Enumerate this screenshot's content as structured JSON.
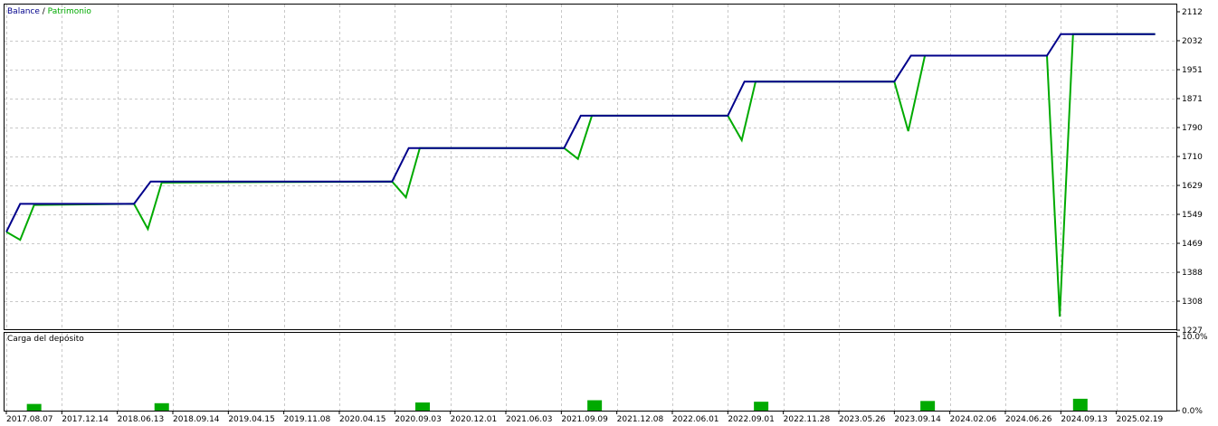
{
  "chart_data": [
    {
      "type": "line",
      "legend": {
        "balance_label": "Balance",
        "separator": " / ",
        "equity_label": "Patrimonio",
        "position": "top-left"
      },
      "colors": {
        "balance": "#00008b",
        "equity": "#00aa00",
        "grid": "#c8c8c8"
      },
      "grid": true,
      "ylim": [
        1227,
        2112
      ],
      "y_ticks": [
        "2112",
        "2032",
        "1951",
        "1871",
        "1790",
        "1710",
        "1629",
        "1549",
        "1469",
        "1388",
        "1308",
        "1227"
      ],
      "x_ticks": [
        "2017.08.07",
        "2017.12.14",
        "2018.06.13",
        "2018.09.14",
        "2019.04.15",
        "2019.11.08",
        "2020.04.15",
        "2020.09.03",
        "2020.12.01",
        "2021.06.03",
        "2021.09.09",
        "2021.12.08",
        "2022.06.01",
        "2022.09.01",
        "2022.11.28",
        "2023.05.26",
        "2023.09.14",
        "2024.02.06",
        "2024.06.26",
        "2024.09.13",
        "2025.02.19"
      ],
      "x_range": [
        0,
        21
      ],
      "series": [
        {
          "name": "Balance",
          "points": [
            [
              0,
              1500
            ],
            [
              0.25,
              1578
            ],
            [
              2.3,
              1578
            ],
            [
              2.6,
              1640
            ],
            [
              6.95,
              1640
            ],
            [
              7.25,
              1733
            ],
            [
              10.05,
              1733
            ],
            [
              10.35,
              1823
            ],
            [
              13.0,
              1823
            ],
            [
              13.3,
              1918
            ],
            [
              16.0,
              1918
            ],
            [
              16.3,
              1990
            ],
            [
              18.75,
              1990
            ],
            [
              19.0,
              2050
            ],
            [
              20.7,
              2050
            ]
          ]
        },
        {
          "name": "Patrimonio",
          "points": [
            [
              0,
              1500
            ],
            [
              0.25,
              1478
            ],
            [
              0.5,
              1575
            ],
            [
              2.3,
              1578
            ],
            [
              2.55,
              1508
            ],
            [
              2.8,
              1637
            ],
            [
              6.95,
              1640
            ],
            [
              7.2,
              1596
            ],
            [
              7.45,
              1733
            ],
            [
              10.05,
              1733
            ],
            [
              10.3,
              1703
            ],
            [
              10.55,
              1823
            ],
            [
              13.0,
              1823
            ],
            [
              13.25,
              1755
            ],
            [
              13.5,
              1918
            ],
            [
              16.0,
              1918
            ],
            [
              16.25,
              1780
            ],
            [
              16.55,
              1990
            ],
            [
              18.75,
              1990
            ],
            [
              18.98,
              1265
            ],
            [
              19.22,
              2050
            ],
            [
              20.7,
              2050
            ]
          ]
        }
      ]
    },
    {
      "type": "bar",
      "title": "Carga del depósito",
      "y_ticks": [
        "10.0%",
        "0.0%"
      ],
      "ylim": [
        0,
        10
      ],
      "colors": {
        "bar": "#00aa00"
      },
      "bars": [
        {
          "x": 0.5,
          "value": 0.9
        },
        {
          "x": 2.8,
          "value": 1.0
        },
        {
          "x": 7.5,
          "value": 1.1
        },
        {
          "x": 10.6,
          "value": 1.4
        },
        {
          "x": 13.6,
          "value": 1.2
        },
        {
          "x": 16.6,
          "value": 1.3
        },
        {
          "x": 19.35,
          "value": 1.6
        }
      ]
    }
  ]
}
